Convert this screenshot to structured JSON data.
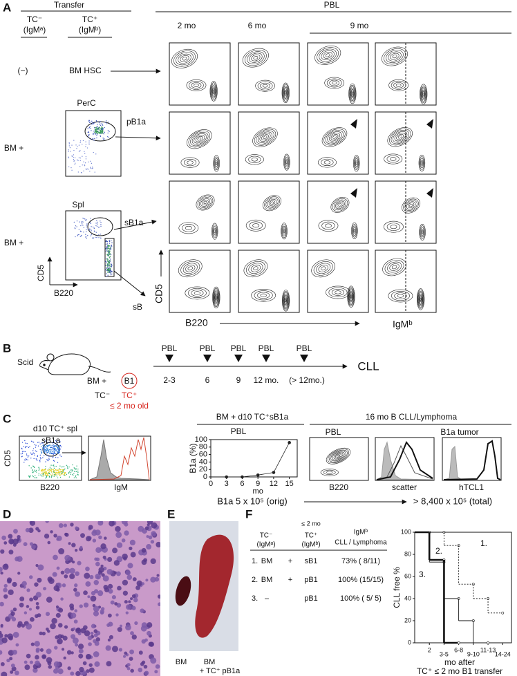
{
  "panel_a": {
    "label": "A",
    "transfer": "Transfer",
    "pbl": "PBL",
    "donors": [
      {
        "name": "TC⁻",
        "isotype": "(IgMᵃ)"
      },
      {
        "name": "TC⁺",
        "isotype": "(IgMᵇ)"
      }
    ],
    "time_points": [
      "2 mo",
      "6 mo",
      "9 mo"
    ],
    "rows": [
      {
        "recipient": "(−)",
        "source": "BM HSC"
      },
      {
        "recipient": "BM +",
        "tissue": "PerC",
        "population": "pB1a"
      },
      {
        "recipient": "BM +",
        "tissue": "Spl",
        "population": "sB1a",
        "second_population": "sB"
      }
    ],
    "inset_y_axis": "CD5",
    "inset_x_axis": "B220",
    "y_axis": "CD5",
    "x_axis": "B220",
    "x_axis_right": "IgMᵇ"
  },
  "panel_b": {
    "label": "B",
    "strain": "Scid",
    "recipient": "BM +",
    "donor": "B1",
    "donor_control": "TC⁻",
    "donor_type": "TC⁺",
    "donor_age": "≤ 2 mo old",
    "donor_color": "#d7261e",
    "sample_labels": [
      "PBL",
      "PBL",
      "PBL",
      "PBL",
      "PBL"
    ],
    "times": [
      "2-3",
      "6",
      "9",
      "12 mo.",
      "(> 12mo.)"
    ],
    "outcome": "CLL"
  },
  "panel_c": {
    "label": "C",
    "sort_title": "d10 TC⁺ spl",
    "gate": "sB1a",
    "y_axis": "CD5",
    "x_axis": "B220",
    "histogram_axis": "IgM",
    "transfer_title": "BM + d10 TC⁺sB1a",
    "pbl": "PBL",
    "b1a_chart": {
      "type": "line",
      "y_label": "B1a (%)",
      "x_label": "mo",
      "x": [
        3,
        6,
        9,
        12,
        15
      ],
      "values": [
        0,
        0,
        5,
        12,
        92
      ],
      "xlim": [
        0,
        16.5
      ],
      "ylim": [
        0,
        100
      ],
      "xticks": [
        0,
        3,
        6,
        9,
        12,
        15
      ],
      "yticks": [
        0,
        20,
        40,
        60,
        80,
        100
      ],
      "color": "#222222"
    },
    "tumor_title": "16 mo  B CLL/Lymphoma",
    "tumor_pbl": "PBL",
    "tumor_site": "B1a tumor",
    "tumor_axes": [
      "B220",
      "scatter",
      "hTCL1"
    ],
    "origin_count": "B1a 5 x 10⁵ (orig)",
    "total_count": "> 8,400 x 10⁵ (total)"
  },
  "panel_d": {
    "label": "D"
  },
  "panel_e": {
    "label": "E",
    "left": "BM",
    "right": "BM",
    "right_sub": "+ TC⁺ pB1a"
  },
  "panel_f": {
    "label": "F",
    "table": {
      "col1": "TC⁻",
      "col1_sub": "(IgMᵃ)",
      "col2_top": "≤ 2 mo",
      "col2": "TC⁺",
      "col2_sub": "(IgMᵇ)",
      "col3": "IgMᵇ",
      "col3_sub": "CLL / Lymphoma",
      "rows": [
        {
          "num": "1.",
          "recipient": "BM",
          "plus": "+",
          "donor": "sB1",
          "result": "73% ( 8/11)"
        },
        {
          "num": "2.",
          "recipient": "BM",
          "plus": "+",
          "donor": "pB1",
          "result": "100% (15/15)"
        },
        {
          "num": "3.",
          "recipient": "–",
          "donor": "pB1",
          "result": "100% ( 5/ 5)"
        }
      ]
    },
    "chart": {
      "type": "step",
      "y_label": "CLL free %",
      "x_label": "mo  after",
      "x_label_2": "TC⁺ ≤ 2 mo B1 transfer",
      "categories": [
        "2",
        "3-5",
        "6-8",
        "9-10",
        "11-13",
        "14-24"
      ],
      "ylim": [
        0,
        100
      ],
      "yticks": [
        0,
        20,
        40,
        60,
        80,
        100
      ],
      "series": [
        {
          "name": "1.",
          "line_style": "dotted",
          "values": [
            100,
            100,
            88,
            53,
            40,
            27
          ]
        },
        {
          "name": "2.",
          "line_style": "solid",
          "values": [
            100,
            73,
            40,
            20,
            0,
            null
          ]
        },
        {
          "name": "3.",
          "line_style": "bold",
          "values": [
            100,
            75,
            0,
            null,
            null,
            null
          ]
        }
      ]
    }
  }
}
